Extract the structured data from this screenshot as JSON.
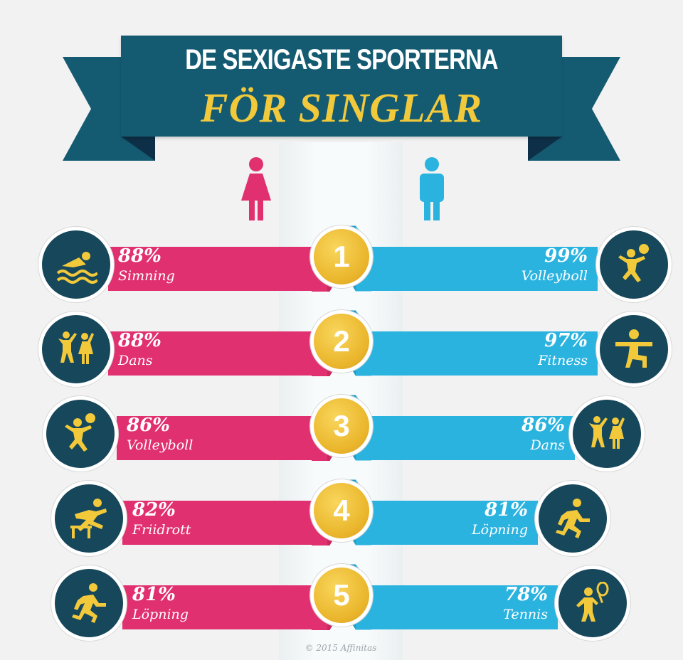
{
  "title": "DE SEXIGASTE SPORTERNA",
  "subtitle": "FÖR SINGLAR",
  "colors": {
    "women": "#e0306f",
    "men": "#2bb3e0",
    "banner": "#145b72",
    "medal": "#eab62c",
    "badge": "#16475b",
    "icon": "#f1c93a"
  },
  "chart_data": {
    "type": "bar",
    "categories": [
      "1",
      "2",
      "3",
      "4",
      "5"
    ],
    "series": [
      {
        "values": [
          88,
          88,
          86,
          82,
          81
        ],
        "labels": [
          "Simning",
          "Dans",
          "Volleyboll",
          "Friidrott",
          "Löpning"
        ],
        "icons": [
          "swimmer-icon",
          "dancers-icon",
          "volleyball-player-icon",
          "hurdler-icon",
          "runner-icon"
        ]
      },
      {
        "values": [
          99,
          97,
          86,
          81,
          78
        ],
        "labels": [
          "Volleyboll",
          "Fitness",
          "Dans",
          "Löpning",
          "Tennis"
        ],
        "icons": [
          "volleyball-player-icon",
          "fitness-icon",
          "dancers-icon",
          "runner-icon",
          "tennis-player-icon"
        ]
      }
    ],
    "value_display": [
      "88%",
      "88%",
      "86%",
      "82%",
      "81%",
      "99%",
      "97%",
      "86%",
      "81%",
      "78%"
    ]
  },
  "footer": {
    "copyright": "© 2015 Affinitas"
  }
}
